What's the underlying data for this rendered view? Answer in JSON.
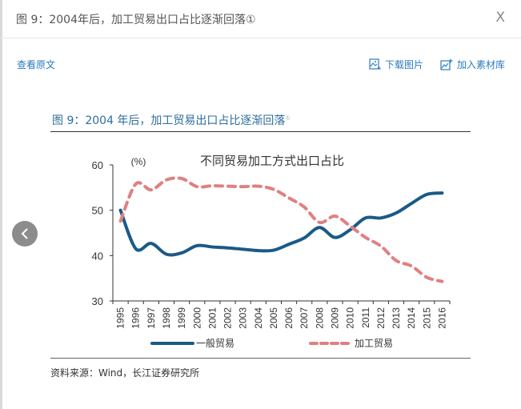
{
  "dialog": {
    "title": "图 9：2004年后，加工贸易出口占比逐渐回落①",
    "close_label": "X"
  },
  "toolbar": {
    "view_original": "查看原文",
    "download_image": "下载图片",
    "add_to_library": "加入素材库"
  },
  "figure": {
    "caption": "图 9：2004 年后，加工贸易出口占比逐渐回落",
    "footnote_mark": "①",
    "source": "资料来源：Wind，长江证券研究所"
  },
  "chart_data": {
    "type": "line",
    "title": "不同贸易加工方式出口占比",
    "ylabel": "(%)",
    "xlabel": "",
    "ylim": [
      30,
      60
    ],
    "yticks": [
      30,
      40,
      50,
      60
    ],
    "grid": false,
    "legend_position": "bottom",
    "x": [
      "1995",
      "1996",
      "1997",
      "1998",
      "1999",
      "2000",
      "2001",
      "2002",
      "2003",
      "2004",
      "2005",
      "2006",
      "2007",
      "2008",
      "2009",
      "2010",
      "2011",
      "2012",
      "2013",
      "2014",
      "2015",
      "2016"
    ],
    "series": [
      {
        "name": "一般贸易",
        "color": "#1a5a87",
        "style": "solid",
        "values": [
          50.0,
          41.5,
          42.7,
          40.3,
          40.6,
          42.2,
          41.9,
          41.7,
          41.4,
          41.1,
          41.2,
          42.5,
          43.9,
          46.2,
          44.0,
          45.7,
          48.3,
          48.3,
          49.4,
          51.5,
          53.5,
          53.8
        ]
      },
      {
        "name": "加工贸易",
        "color": "#e08080",
        "style": "dashed",
        "values": [
          47.6,
          55.8,
          54.5,
          56.7,
          57.0,
          55.2,
          55.4,
          55.3,
          55.2,
          55.3,
          54.6,
          52.7,
          50.7,
          47.3,
          48.7,
          46.5,
          44.0,
          42.1,
          38.9,
          37.7,
          35.2,
          34.3
        ]
      }
    ]
  }
}
